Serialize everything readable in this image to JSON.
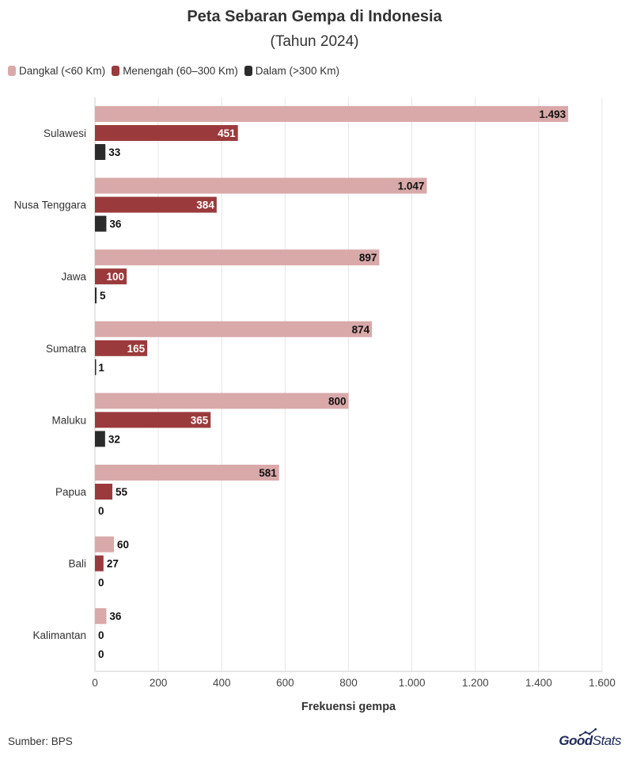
{
  "chart_data": {
    "type": "bar",
    "orientation": "horizontal",
    "title": "Peta Sebaran Gempa di Indonesia",
    "subtitle": "(Tahun 2024)",
    "xlabel": "Frekuensi gempa",
    "ylabel": "",
    "xlim": [
      0,
      1600
    ],
    "xticks": [
      0,
      200,
      400,
      600,
      800,
      1000,
      1200,
      1400,
      1600
    ],
    "xtick_labels": [
      "0",
      "200",
      "400",
      "600",
      "800",
      "1.000",
      "1.200",
      "1.400",
      "1.600"
    ],
    "grid": true,
    "legend_position": "top-left",
    "categories": [
      "Sulawesi",
      "Nusa Tenggara",
      "Jawa",
      "Sumatra",
      "Maluku",
      "Papua",
      "Bali",
      "Kalimantan"
    ],
    "series": [
      {
        "name": "Dangkal (<60 Km)",
        "color": "#d9a9a9",
        "values": [
          1493,
          1047,
          897,
          874,
          800,
          581,
          60,
          36
        ],
        "labels": [
          "1.493",
          "1.047",
          "897",
          "874",
          "800",
          "581",
          "60",
          "36"
        ]
      },
      {
        "name": "Menengah (60–300 Km)",
        "color": "#9b3a3c",
        "values": [
          451,
          384,
          100,
          165,
          365,
          55,
          27,
          0
        ],
        "labels": [
          "451",
          "384",
          "100",
          "165",
          "365",
          "55",
          "27",
          "0"
        ]
      },
      {
        "name": "Dalam (>300 Km)",
        "color": "#2b2b2b",
        "values": [
          33,
          36,
          5,
          1,
          32,
          0,
          0,
          0
        ],
        "labels": [
          "33",
          "36",
          "5",
          "1",
          "32",
          "0",
          "0",
          "0"
        ]
      }
    ]
  },
  "footer": {
    "source": "Sumber: BPS",
    "brand_bold": "Good",
    "brand_thin": "Stats"
  }
}
